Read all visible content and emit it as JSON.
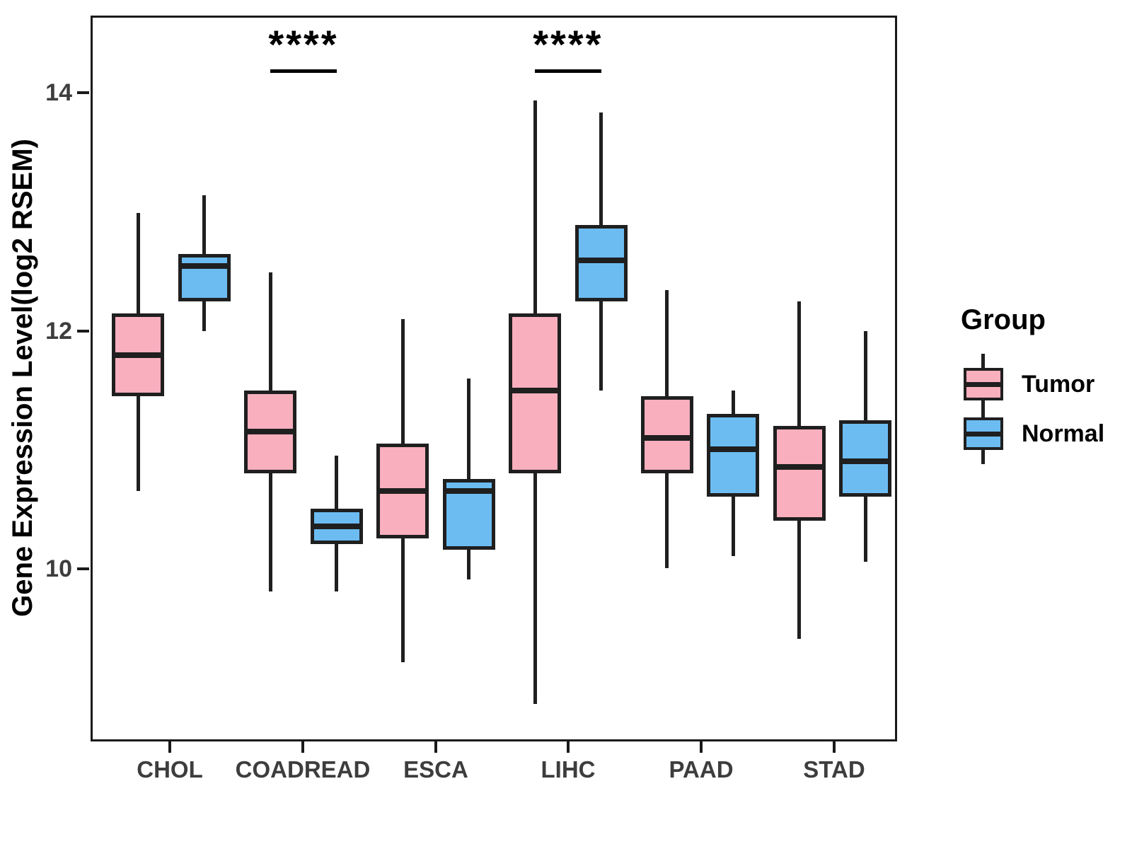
{
  "y_axis": {
    "label": "Gene Expression Level(log2 RSEM)",
    "ticks": [
      "14",
      "12",
      "10"
    ]
  },
  "x_axis": {
    "label": "",
    "categories": [
      "CHOL",
      "COADREAD",
      "ESCA",
      "LIHC",
      "PAAD",
      "STAD"
    ]
  },
  "legend": {
    "title": "Group",
    "items": [
      {
        "label": "Tumor",
        "color": "#F9AFBE"
      },
      {
        "label": "Normal",
        "color": "#6CBCF2"
      }
    ]
  },
  "chart_data": {
    "type": "boxplot",
    "title": "",
    "xlabel": "",
    "ylabel": "Gene Expression Level(log2 RSEM)",
    "categories": [
      "CHOL",
      "COADREAD",
      "ESCA",
      "LIHC",
      "PAAD",
      "STAD"
    ],
    "y_ticks": [
      14,
      12,
      10
    ],
    "ylim": [
      8.55,
      14.65
    ],
    "grid": false,
    "legend_position": "right",
    "layout": {
      "group_centers_pct": [
        9.8,
        26.28,
        42.76,
        59.24,
        75.72,
        92.2
      ],
      "pair_offset_pct": 4.12
    },
    "series": [
      {
        "name": "Tumor",
        "color": "#F9AFBE",
        "boxes": [
          {
            "category": "CHOL",
            "min": 10.65,
            "q1": 11.45,
            "median": 11.8,
            "q3": 12.15,
            "max": 13.0
          },
          {
            "category": "COADREAD",
            "min": 9.8,
            "q1": 10.8,
            "median": 11.15,
            "q3": 11.5,
            "max": 12.5
          },
          {
            "category": "ESCA",
            "min": 9.2,
            "q1": 10.25,
            "median": 10.65,
            "q3": 11.05,
            "max": 12.1
          },
          {
            "category": "LIHC",
            "min": 8.85,
            "q1": 10.8,
            "median": 11.5,
            "q3": 12.15,
            "max": 13.95
          },
          {
            "category": "PAAD",
            "min": 10.0,
            "q1": 10.8,
            "median": 11.1,
            "q3": 11.45,
            "max": 12.35
          },
          {
            "category": "STAD",
            "min": 9.4,
            "q1": 10.4,
            "median": 10.85,
            "q3": 11.2,
            "max": 12.25
          }
        ]
      },
      {
        "name": "Normal",
        "color": "#6CBCF2",
        "boxes": [
          {
            "category": "CHOL",
            "min": 12.0,
            "q1": 12.25,
            "median": 12.55,
            "q3": 12.65,
            "max": 13.15
          },
          {
            "category": "COADREAD",
            "min": 9.8,
            "q1": 10.2,
            "median": 10.35,
            "q3": 10.5,
            "max": 10.95
          },
          {
            "category": "ESCA",
            "min": 9.9,
            "q1": 10.15,
            "median": 10.65,
            "q3": 10.75,
            "max": 11.6
          },
          {
            "category": "LIHC",
            "min": 11.5,
            "q1": 12.25,
            "median": 12.6,
            "q3": 12.9,
            "max": 13.85
          },
          {
            "category": "PAAD",
            "min": 10.1,
            "q1": 10.6,
            "median": 11.0,
            "q3": 11.3,
            "max": 11.5
          },
          {
            "category": "STAD",
            "min": 10.05,
            "q1": 10.6,
            "median": 10.9,
            "q3": 11.25,
            "max": 12.0
          }
        ]
      }
    ],
    "annotations": [
      {
        "category": "COADREAD",
        "text": "****"
      },
      {
        "category": "LIHC",
        "text": "****"
      }
    ]
  }
}
